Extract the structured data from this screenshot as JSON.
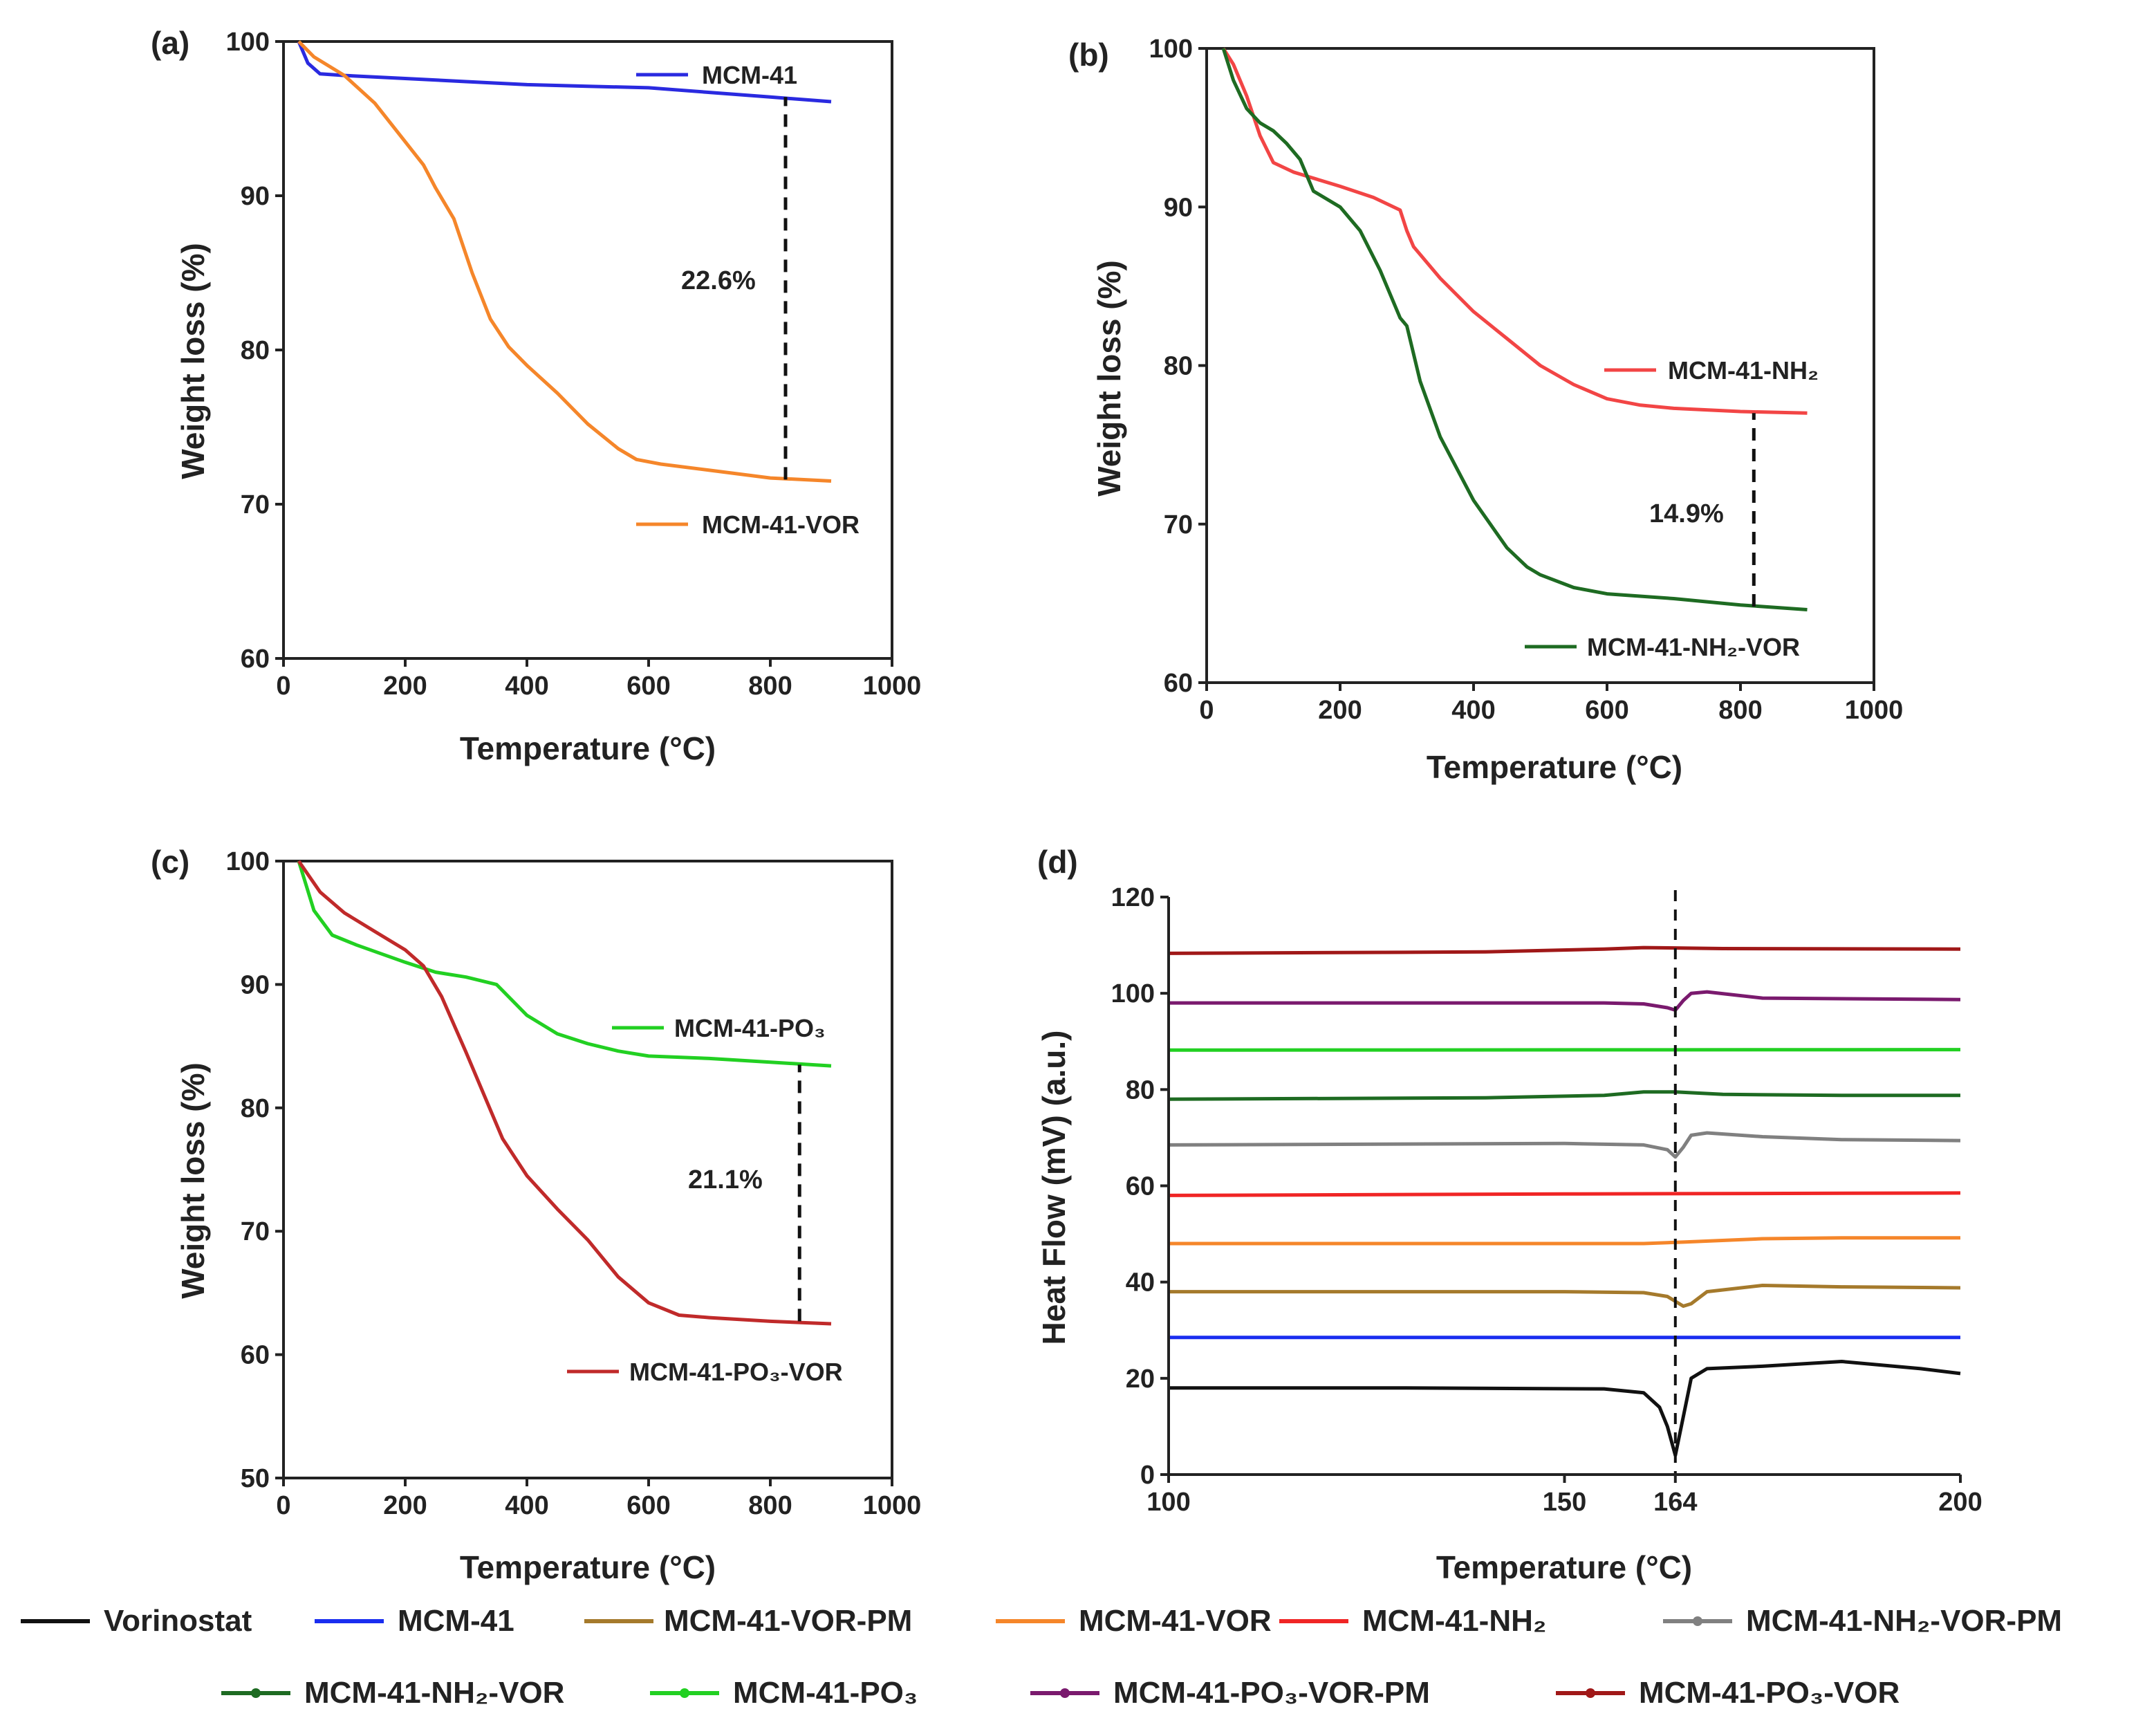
{
  "chart_data": [
    {
      "type": "line",
      "panel_label": "(a)",
      "xlabel": "Temperature (°C)",
      "ylabel": "Weight loss (%)",
      "xlim": [
        0,
        1000
      ],
      "ylim": [
        60,
        100
      ],
      "xticks": [
        "0",
        "200",
        "400",
        "600",
        "800",
        "1000"
      ],
      "yticks": [
        "60",
        "70",
        "80",
        "90",
        "100"
      ],
      "series": [
        {
          "name": "MCM-41",
          "color": "#2a2ae0",
          "x": [
            25,
            40,
            60,
            100,
            200,
            300,
            400,
            500,
            600,
            700,
            800,
            900
          ],
          "y": [
            100,
            98.6,
            97.9,
            97.8,
            97.6,
            97.4,
            97.2,
            97.1,
            97.0,
            96.7,
            96.4,
            96.1
          ]
        },
        {
          "name": "MCM-41-VOR",
          "color": "#f5862a",
          "x": [
            25,
            50,
            100,
            150,
            200,
            230,
            250,
            280,
            310,
            340,
            370,
            400,
            450,
            500,
            550,
            580,
            620,
            700,
            800,
            900
          ],
          "y": [
            100,
            99.0,
            97.8,
            96.0,
            93.5,
            92.0,
            90.5,
            88.5,
            85.0,
            82.0,
            80.2,
            79.0,
            77.2,
            75.2,
            73.6,
            72.9,
            72.6,
            72.2,
            71.7,
            71.5
          ]
        }
      ],
      "annotation": {
        "text": "22.6%",
        "x": 825,
        "y_from": 71.6,
        "y_to": 96.4
      }
    },
    {
      "type": "line",
      "panel_label": "(b)",
      "xlabel": "Temperature (°C)",
      "ylabel": "Weight loss (%)",
      "xlim": [
        0,
        1000
      ],
      "ylim": [
        60,
        100
      ],
      "xticks": [
        "0",
        "200",
        "400",
        "600",
        "800",
        "1000"
      ],
      "yticks": [
        "60",
        "70",
        "80",
        "90",
        "100"
      ],
      "series": [
        {
          "name": "MCM-41-NH₂",
          "color": "#f24545",
          "x": [
            25,
            40,
            60,
            80,
            100,
            130,
            200,
            250,
            290,
            300,
            310,
            350,
            400,
            450,
            500,
            550,
            600,
            650,
            700,
            800,
            900
          ],
          "y": [
            100,
            99.0,
            97.0,
            94.5,
            92.8,
            92.2,
            91.3,
            90.6,
            89.8,
            88.5,
            87.5,
            85.5,
            83.4,
            81.7,
            80.0,
            78.8,
            77.9,
            77.5,
            77.3,
            77.1,
            77.0
          ]
        },
        {
          "name": "MCM-41-NH₂-VOR",
          "color": "#1e6b22",
          "x": [
            25,
            40,
            60,
            80,
            100,
            120,
            140,
            160,
            200,
            230,
            260,
            290,
            300,
            320,
            350,
            400,
            450,
            480,
            500,
            550,
            600,
            700,
            800,
            900
          ],
          "y": [
            100,
            98.0,
            96.2,
            95.3,
            94.8,
            94.0,
            93.0,
            91.0,
            90.0,
            88.5,
            86.0,
            83.0,
            82.5,
            79.0,
            75.5,
            71.5,
            68.5,
            67.3,
            66.8,
            66.0,
            65.6,
            65.3,
            64.9,
            64.6
          ]
        }
      ],
      "annotation": {
        "text": "14.9%",
        "x": 820,
        "y_from": 64.8,
        "y_to": 77.0
      }
    },
    {
      "type": "line",
      "panel_label": "(c)",
      "xlabel": "Temperature (°C)",
      "ylabel": "Weight loss (%)",
      "xlim": [
        0,
        1000
      ],
      "ylim": [
        50,
        100
      ],
      "xticks": [
        "0",
        "200",
        "400",
        "600",
        "800",
        "1000"
      ],
      "yticks": [
        "50",
        "60",
        "70",
        "80",
        "90",
        "100"
      ],
      "series": [
        {
          "name": "MCM-41-PO₃",
          "color": "#22d022",
          "x": [
            25,
            50,
            80,
            120,
            200,
            250,
            300,
            350,
            360,
            400,
            450,
            500,
            550,
            600,
            700,
            800,
            900
          ],
          "y": [
            100,
            96.0,
            94.0,
            93.2,
            91.8,
            91.0,
            90.6,
            90.0,
            89.5,
            87.5,
            86.0,
            85.2,
            84.6,
            84.2,
            84.0,
            83.7,
            83.4
          ]
        },
        {
          "name": "MCM-41-PO₃-VOR",
          "color": "#c02a2a",
          "x": [
            25,
            60,
            100,
            150,
            200,
            230,
            260,
            300,
            330,
            360,
            400,
            450,
            500,
            550,
            600,
            650,
            700,
            800,
            900
          ],
          "y": [
            100,
            97.5,
            95.8,
            94.3,
            92.8,
            91.5,
            89.0,
            84.5,
            81.0,
            77.5,
            74.5,
            71.8,
            69.3,
            66.3,
            64.2,
            63.2,
            63.0,
            62.7,
            62.5
          ]
        }
      ],
      "annotation": {
        "text": "21.1%",
        "x": 848,
        "y_from": 62.7,
        "y_to": 83.5
      }
    },
    {
      "type": "line",
      "panel_label": "(d)",
      "xlabel": "Temperature (°C)",
      "ylabel": "Heat Flow (mV) (a.u.)",
      "xlim": [
        100,
        200
      ],
      "ylim": [
        0,
        120
      ],
      "xticks": [
        "100",
        "150",
        "164",
        "200"
      ],
      "xtick_values": [
        100,
        150,
        164,
        200
      ],
      "yticks": [
        "0",
        "20",
        "40",
        "60",
        "80",
        "100",
        "120"
      ],
      "vline": 164,
      "series": [
        {
          "name": "Vorinostat",
          "color": "#111111",
          "x": [
            100,
            130,
            155,
            160,
            162,
            163,
            164,
            165,
            166,
            168,
            175,
            185,
            195,
            200
          ],
          "y": [
            18,
            18,
            17.8,
            17,
            14,
            10,
            4,
            12,
            20,
            22,
            22.5,
            23.5,
            22,
            21
          ]
        },
        {
          "name": "MCM-41",
          "color": "#1a2ef0",
          "x": [
            100,
            200
          ],
          "y": [
            28.5,
            28.5
          ]
        },
        {
          "name": "MCM-41-VOR-PM",
          "color": "#a57a2c",
          "x": [
            100,
            150,
            160,
            163,
            164,
            165,
            166,
            168,
            175,
            185,
            200
          ],
          "y": [
            38,
            38,
            37.8,
            37,
            36,
            35,
            35.5,
            38,
            39.3,
            39,
            38.8
          ]
        },
        {
          "name": "MCM-41-VOR",
          "color": "#f5862a",
          "x": [
            100,
            160,
            165,
            175,
            185,
            200
          ],
          "y": [
            48,
            48,
            48.3,
            49,
            49.2,
            49.2
          ]
        },
        {
          "name": "MCM-41-NH₂",
          "color": "#f02525",
          "x": [
            100,
            150,
            200
          ],
          "y": [
            58,
            58.3,
            58.5
          ]
        },
        {
          "name": "MCM-41-NH₂-VOR-PM",
          "color": "#808080",
          "x": [
            100,
            150,
            160,
            163,
            164,
            165,
            166,
            168,
            175,
            185,
            200
          ],
          "y": [
            68.5,
            68.8,
            68.5,
            67.5,
            66,
            68,
            70.5,
            71,
            70.2,
            69.6,
            69.4
          ]
        },
        {
          "name": "MCM-41-NH₂-VOR",
          "color": "#1e6b22",
          "x": [
            100,
            140,
            155,
            160,
            164,
            170,
            185,
            200
          ],
          "y": [
            78,
            78.3,
            78.8,
            79.5,
            79.5,
            79,
            78.8,
            78.8
          ]
        },
        {
          "name": "MCM-41-PO₃",
          "color": "#22d022",
          "x": [
            100,
            200
          ],
          "y": [
            88.2,
            88.3
          ]
        },
        {
          "name": "MCM-41-PO₃-VOR-PM",
          "color": "#7a1a6e",
          "x": [
            100,
            155,
            160,
            163,
            164,
            165,
            166,
            168,
            175,
            200
          ],
          "y": [
            98,
            98,
            97.8,
            97,
            96.5,
            98.5,
            100,
            100.3,
            99,
            98.7
          ]
        },
        {
          "name": "MCM-41-PO₃-VOR",
          "color": "#a01818",
          "x": [
            100,
            140,
            155,
            160,
            170,
            200
          ],
          "y": [
            108.3,
            108.6,
            109.2,
            109.5,
            109.3,
            109.2
          ]
        }
      ]
    }
  ],
  "legend_bottom": [
    {
      "label": "Vorinostat",
      "color": "#111111",
      "marker": false
    },
    {
      "label": "MCM-41",
      "color": "#1a2ef0",
      "marker": false
    },
    {
      "label": "MCM-41-VOR-PM",
      "color": "#a57a2c",
      "marker": false
    },
    {
      "label": "MCM-41-VOR",
      "color": "#f5862a",
      "marker": false
    },
    {
      "label": "MCM-41-NH₂",
      "color": "#f02525",
      "marker": false
    },
    {
      "label": "MCM-41-NH₂-VOR-PM",
      "color": "#808080",
      "marker": true
    },
    {
      "label": "MCM-41-NH₂-VOR",
      "color": "#1e6b22",
      "marker": true
    },
    {
      "label": "MCM-41-PO₃",
      "color": "#22d022",
      "marker": true
    },
    {
      "label": "MCM-41-PO₃-VOR-PM",
      "color": "#7a1a6e",
      "marker": true
    },
    {
      "label": "MCM-41-PO₃-VOR",
      "color": "#a01818",
      "marker": true
    }
  ]
}
